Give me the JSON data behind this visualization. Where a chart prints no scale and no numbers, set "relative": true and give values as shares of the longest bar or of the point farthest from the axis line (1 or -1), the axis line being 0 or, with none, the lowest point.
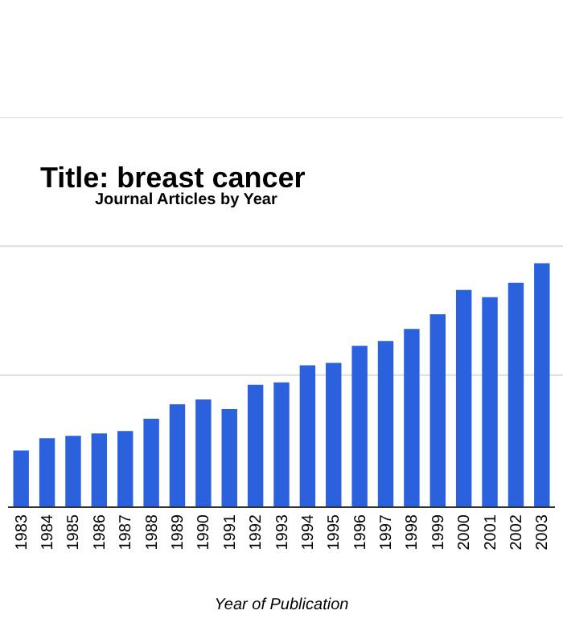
{
  "chart_data": {
    "type": "bar",
    "title": "Title: breast cancer",
    "subtitle": "Journal Articles by Year",
    "xlabel": "Year of Publication",
    "categories": [
      "1983",
      "1984",
      "1985",
      "1986",
      "1987",
      "1988",
      "1989",
      "1990",
      "1991",
      "1992",
      "1993",
      "1994",
      "1995",
      "1996",
      "1997",
      "1998",
      "1999",
      "2000",
      "2001",
      "2002",
      "2003"
    ],
    "values": [
      0.23,
      0.28,
      0.29,
      0.3,
      0.31,
      0.36,
      0.42,
      0.44,
      0.4,
      0.5,
      0.51,
      0.58,
      0.59,
      0.66,
      0.68,
      0.73,
      0.79,
      0.89,
      0.86,
      0.92,
      1
    ],
    "color": "#2b61dd",
    "relative": true,
    "ref_lines": [
      {
        "axis": "y",
        "value": 0.54,
        "color": "#dcdcdc",
        "line_style": "solid"
      },
      {
        "axis": "y",
        "value": 1.07,
        "color": "#dcdcdc",
        "line_style": "solid"
      },
      {
        "axis": "y",
        "value": 1.6,
        "color": "#dcdcdc",
        "line_style": "solid"
      }
    ]
  }
}
